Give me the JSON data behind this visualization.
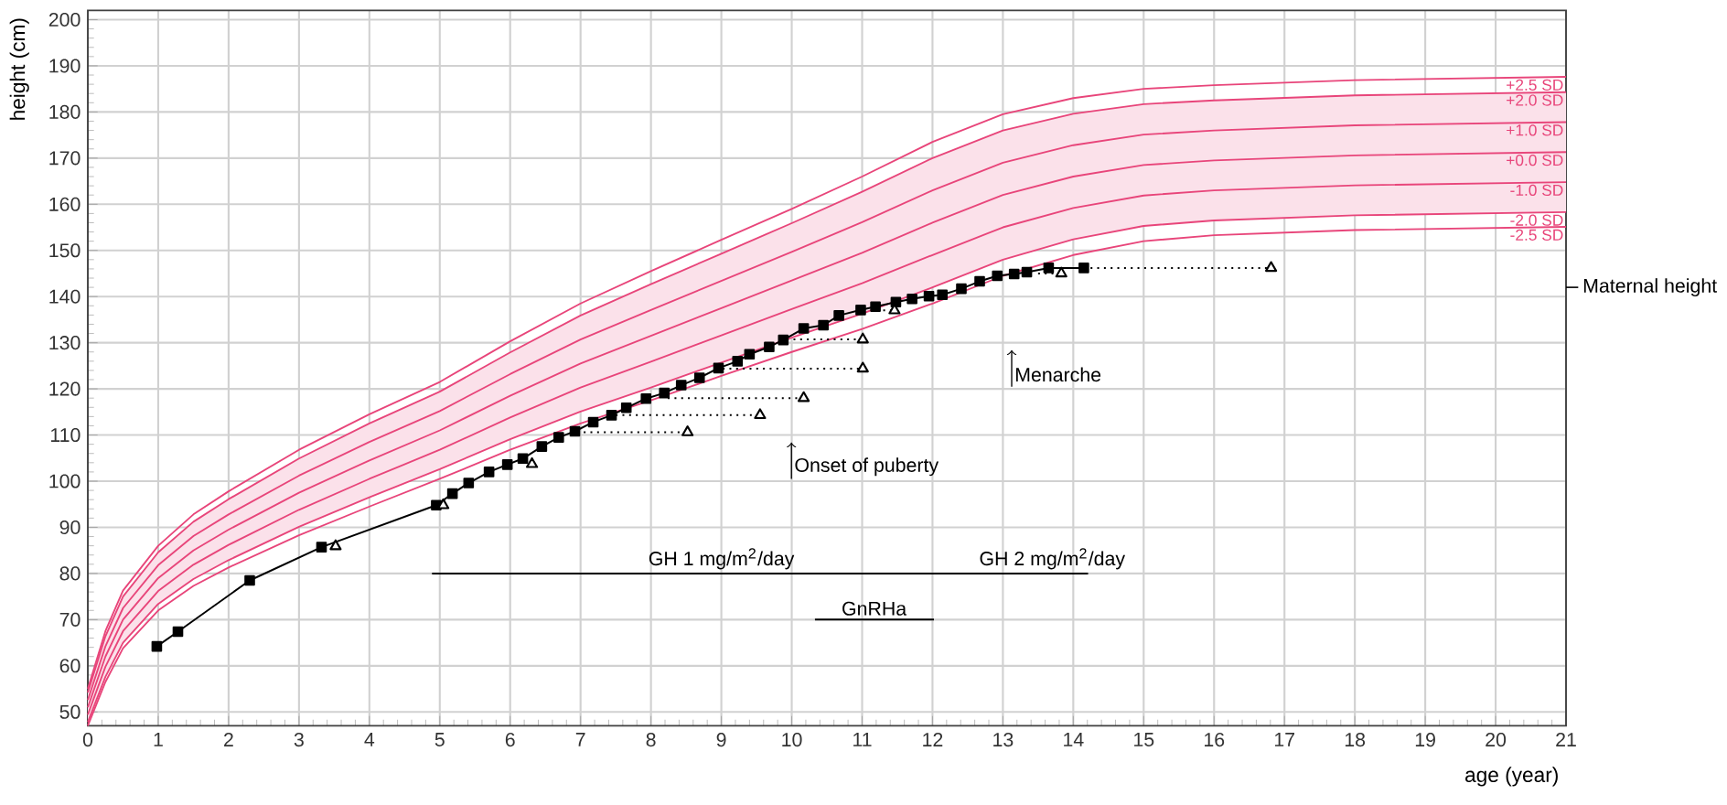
{
  "chart_data": {
    "type": "line",
    "xlabel": "age (year)",
    "ylabel": "height (cm)",
    "xlim": [
      0,
      21
    ],
    "ylim": [
      47,
      202
    ],
    "xticks": [
      0,
      1,
      2,
      3,
      4,
      5,
      6,
      7,
      8,
      9,
      10,
      11,
      12,
      13,
      14,
      15,
      16,
      17,
      18,
      19,
      20,
      21
    ],
    "yticks": [
      50,
      60,
      70,
      80,
      90,
      100,
      110,
      120,
      130,
      140,
      150,
      160,
      170,
      180,
      190,
      200
    ],
    "grid": true,
    "series": [
      {
        "name": "+2.5 SD",
        "color": "#e8457a",
        "x": [
          0,
          0.25,
          0.5,
          1,
          1.5,
          2,
          3,
          4,
          5,
          6,
          7,
          8,
          9,
          10,
          11,
          12,
          13,
          14,
          15,
          16,
          18,
          21
        ],
        "values": [
          55,
          67.5,
          76.3,
          86,
          92.8,
          97.8,
          106.8,
          114.5,
          121.5,
          130.3,
          138.5,
          145.5,
          152.3,
          159,
          166,
          173.5,
          179.5,
          183,
          185,
          185.8,
          186.9,
          187.6
        ]
      },
      {
        "name": "+2.0 SD",
        "color": "#e8457a",
        "x": [
          0,
          0.25,
          0.5,
          1,
          1.5,
          2,
          3,
          4,
          5,
          6,
          7,
          8,
          9,
          10,
          11,
          12,
          13,
          14,
          15,
          16,
          18,
          21
        ],
        "values": [
          54.2,
          66.4,
          75,
          84.6,
          91.2,
          96.1,
          104.9,
          112.5,
          119.4,
          127.9,
          135.9,
          142.7,
          149.3,
          155.9,
          162.7,
          170,
          176,
          179.6,
          181.7,
          182.5,
          183.6,
          184.3
        ]
      },
      {
        "name": "+1.0 SD",
        "color": "#e8457a",
        "x": [
          0,
          0.25,
          0.5,
          1,
          1.5,
          2,
          3,
          4,
          5,
          6,
          7,
          8,
          9,
          10,
          11,
          12,
          13,
          14,
          15,
          16,
          18,
          21
        ],
        "values": [
          52.6,
          64.2,
          72.5,
          81.8,
          88.1,
          92.8,
          101.2,
          108.5,
          115.2,
          123.2,
          130.7,
          137.1,
          143.4,
          149.7,
          156.1,
          163,
          169,
          172.8,
          175.1,
          176,
          177.1,
          177.8
        ]
      },
      {
        "name": "+0.0 SD",
        "color": "#e8457a",
        "x": [
          0,
          0.25,
          0.5,
          1,
          1.5,
          2,
          3,
          4,
          5,
          6,
          7,
          8,
          9,
          10,
          11,
          12,
          13,
          14,
          15,
          16,
          18,
          21
        ],
        "values": [
          51,
          62,
          70,
          79,
          85,
          89.5,
          97.5,
          104.5,
          111,
          118.5,
          125.5,
          131.5,
          137.5,
          143.5,
          149.5,
          156,
          162,
          166,
          168.5,
          169.5,
          170.6,
          171.3
        ],
        "lower": [
          47.8,
          57.6,
          65,
          73.4,
          78.8,
          82.9,
          90.1,
          96.5,
          102.6,
          109.1,
          115.1,
          120.3,
          125.7,
          131.1,
          136.3,
          142,
          148,
          152.4,
          155.3,
          156.5,
          157.6,
          158.3
        ],
        "upper": [
          54.2,
          66.4,
          75,
          84.6,
          91.2,
          96.1,
          104.9,
          112.5,
          119.4,
          127.9,
          135.9,
          142.7,
          149.3,
          155.9,
          162.7,
          170,
          176,
          179.6,
          181.7,
          182.5,
          183.6,
          184.3
        ]
      },
      {
        "name": "-1.0 SD",
        "color": "#e8457a",
        "x": [
          0,
          0.25,
          0.5,
          1,
          1.5,
          2,
          3,
          4,
          5,
          6,
          7,
          8,
          9,
          10,
          11,
          12,
          13,
          14,
          15,
          16,
          18,
          21
        ],
        "values": [
          49.4,
          59.8,
          67.5,
          76.2,
          81.9,
          86.2,
          93.8,
          100.5,
          106.8,
          113.8,
          120.3,
          125.9,
          131.6,
          137.3,
          142.9,
          149,
          155,
          159.2,
          161.9,
          163,
          164.1,
          164.8
        ]
      },
      {
        "name": "-2.0 SD",
        "color": "#e8457a",
        "x": [
          0,
          0.25,
          0.5,
          1,
          1.5,
          2,
          3,
          4,
          5,
          6,
          7,
          8,
          9,
          10,
          11,
          12,
          13,
          14,
          15,
          16,
          18,
          21
        ],
        "values": [
          47.8,
          57.6,
          65,
          73.4,
          78.8,
          82.9,
          90.1,
          96.5,
          102.6,
          109.1,
          115.1,
          120.3,
          125.7,
          131.1,
          136.3,
          142,
          148,
          152.4,
          155.3,
          156.5,
          157.6,
          158.3
        ]
      },
      {
        "name": "-2.5 SD",
        "color": "#e8457a",
        "x": [
          0,
          0.25,
          0.5,
          1,
          1.5,
          2,
          3,
          4,
          5,
          6,
          7,
          8,
          9,
          10,
          11,
          12,
          13,
          14,
          15,
          16,
          18,
          21
        ],
        "values": [
          47,
          56.5,
          63.8,
          72,
          77.3,
          81.3,
          88.3,
          94.5,
          100.5,
          106.8,
          112.5,
          117.5,
          122.8,
          128,
          133,
          138.5,
          144.5,
          149,
          152,
          153.3,
          154.4,
          155.1
        ]
      },
      {
        "type": "line",
        "marker": "square",
        "color": "#000000",
        "x": [
          0.98,
          1.28,
          2.3,
          3.32,
          4.95,
          5.18,
          5.41,
          5.7,
          5.96,
          6.18,
          6.45,
          6.69,
          6.92,
          7.18,
          7.44,
          7.65,
          7.93,
          8.19,
          8.43,
          8.69,
          8.96,
          9.23,
          9.4,
          9.68,
          9.88,
          10.17,
          10.45,
          10.67,
          10.98,
          11.19,
          11.48,
          11.71,
          11.95,
          12.14,
          12.41,
          12.67,
          12.92,
          13.16,
          13.34,
          13.65,
          14.15
        ],
        "values": [
          64.2,
          67.4,
          78.5,
          85.7,
          94.8,
          97.3,
          99.6,
          102,
          103.6,
          104.9,
          107.5,
          109.5,
          110.8,
          112.8,
          114.3,
          115.9,
          117.9,
          119.1,
          120.8,
          122.4,
          124.5,
          126,
          127.5,
          129.1,
          130.6,
          133.1,
          133.8,
          135.9,
          137.1,
          137.8,
          138.8,
          139.5,
          140.1,
          140.4,
          141.7,
          143.3,
          144.5,
          144.9,
          145.3,
          146.2,
          146.2
        ]
      },
      {
        "type": "scatter",
        "marker": "triangle",
        "color": "#000000",
        "x": [
          3.52,
          5.05,
          6.31,
          8.52,
          9.55,
          10.17,
          11.01,
          11.01,
          11.46,
          13.83,
          16.81
        ],
        "values": [
          85.9,
          94.8,
          103.7,
          110.6,
          114.3,
          118,
          124.4,
          130.7,
          137,
          145,
          146.2
        ]
      },
      {
        "type": "line",
        "line_style": "dotted",
        "color": "#000000",
        "x": [
          6.95,
          8.52
        ],
        "values": [
          110.6,
          110.6
        ]
      },
      {
        "type": "line",
        "line_style": "dotted",
        "color": "#000000",
        "x": [
          7.5,
          9.55
        ],
        "values": [
          114.3,
          114.3
        ]
      },
      {
        "type": "line",
        "line_style": "dotted",
        "color": "#000000",
        "x": [
          8.24,
          10.17
        ],
        "values": [
          118,
          118
        ]
      },
      {
        "type": "line",
        "line_style": "dotted",
        "color": "#000000",
        "x": [
          9.02,
          11.01
        ],
        "values": [
          124.4,
          124.4
        ]
      },
      {
        "type": "line",
        "line_style": "dotted",
        "color": "#000000",
        "x": [
          9.93,
          11.01
        ],
        "values": [
          130.7,
          130.7
        ]
      },
      {
        "type": "line",
        "line_style": "dotted",
        "color": "#000000",
        "x": [
          11.3,
          11.46
        ],
        "values": [
          137,
          137
        ]
      },
      {
        "type": "line",
        "line_style": "dotted",
        "color": "#000000",
        "x": [
          13.5,
          13.83
        ],
        "values": [
          145,
          145
        ]
      },
      {
        "type": "line",
        "line_style": "dotted",
        "color": "#000000",
        "x": [
          14.15,
          16.81
        ],
        "values": [
          146.2,
          146.2
        ]
      },
      {
        "type": "line",
        "color": "#000000",
        "x": [
          4.89,
          13.16,
          14.21
        ],
        "values": [
          80,
          80,
          80
        ]
      },
      {
        "type": "line",
        "color": "#000000",
        "x": [
          10.33,
          12.02
        ],
        "values": [
          70,
          70
        ]
      }
    ],
    "annotations": [
      {
        "text": "GH 1 mg/m$^{2}$/day",
        "x": 9.0,
        "y": 80
      },
      {
        "text": "GH 2 mg/m$^{2}$/day",
        "x": 13.7,
        "y": 80
      },
      {
        "text": "GnRHa",
        "x": 11.17,
        "y": 70
      },
      "Onset of puberty",
      "Menarche"
    ],
    "ref_lines": [
      {
        "axis": "y",
        "value": 142,
        "label": "Maternal height"
      }
    ]
  }
}
